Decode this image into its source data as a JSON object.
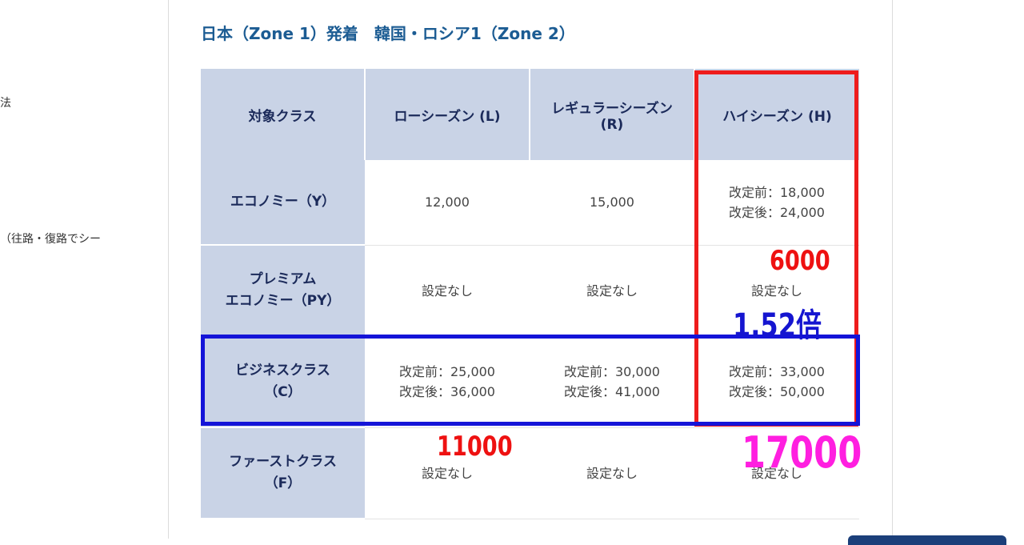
{
  "left_fragments": [
    "法",
    "（往路・復路でシー"
  ],
  "section_title": "日本（Zone 1）発着　韓国・ロシア1（Zone 2）",
  "table": {
    "headers": [
      "対象クラス",
      "ローシーズン (L)",
      "レギュラーシーズン (R)",
      "ハイシーズン (H)"
    ],
    "rows": [
      {
        "class": [
          "エコノミー（Y）"
        ],
        "cells": [
          [
            "12,000"
          ],
          [
            "15,000"
          ],
          [
            "改定前：18,000",
            "改定後：24,000"
          ]
        ]
      },
      {
        "class": [
          "プレミアム",
          "エコノミー（PY）"
        ],
        "cells": [
          [
            "設定なし"
          ],
          [
            "設定なし"
          ],
          [
            "設定なし"
          ]
        ]
      },
      {
        "class": [
          "ビジネスクラス",
          "（C）"
        ],
        "cells": [
          [
            "改定前：25,000",
            "改定後：36,000"
          ],
          [
            "改定前：30,000",
            "改定後：41,000"
          ],
          [
            "改定前：33,000",
            "改定後：50,000"
          ]
        ]
      },
      {
        "class": [
          "ファーストクラス",
          "（F）"
        ],
        "cells": [
          [
            "設定なし"
          ],
          [
            "設定なし"
          ],
          [
            "設定なし"
          ]
        ]
      }
    ]
  },
  "annotations": {
    "diff_high_economy": "6000",
    "ratio": "1.52倍",
    "diff_low_business": "11000",
    "diff_high_business": "17000"
  },
  "colors": {
    "header_bg": "#c9d3e6",
    "title": "#1c5c93",
    "red_box": "#ee1c1c",
    "blue_box": "#1414d8",
    "magenta_text": "#ff1fe0"
  }
}
